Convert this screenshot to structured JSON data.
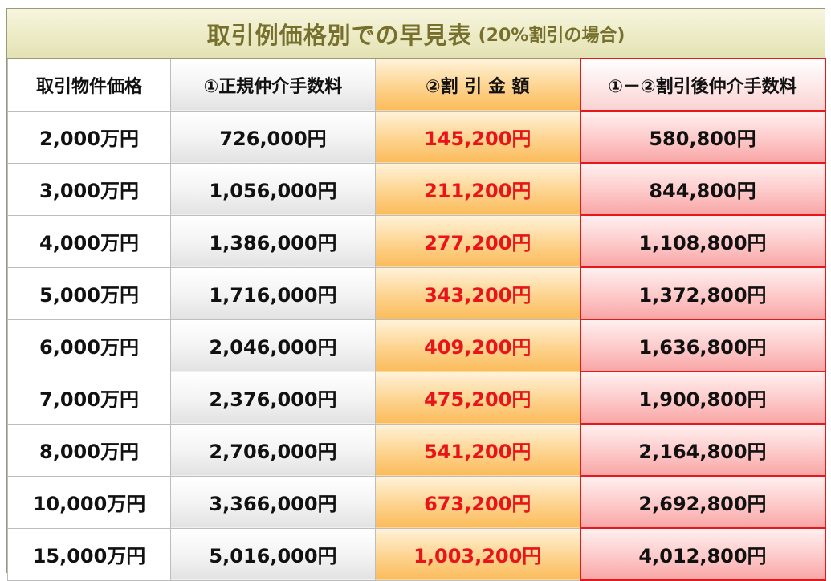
{
  "title": {
    "main": "取引例価格別での早見表",
    "sub": "(20%割引の場合)"
  },
  "headers": {
    "price": "取引物件価格",
    "fee": "①正規仲介手数料",
    "discount": "②割 引 金 額",
    "after": "①－②割引後仲介手数料"
  },
  "rows": [
    {
      "price": "2,000万円",
      "fee": "726,000円",
      "discount": "145,200円",
      "after": "580,800円"
    },
    {
      "price": "3,000万円",
      "fee": "1,056,000円",
      "discount": "211,200円",
      "after": "844,800円"
    },
    {
      "price": "4,000万円",
      "fee": "1,386,000円",
      "discount": "277,200円",
      "after": "1,108,800円"
    },
    {
      "price": "5,000万円",
      "fee": "1,716,000円",
      "discount": "343,200円",
      "after": "1,372,800円"
    },
    {
      "price": "6,000万円",
      "fee": "2,046,000円",
      "discount": "409,200円",
      "after": "1,636,800円"
    },
    {
      "price": "7,000万円",
      "fee": "2,376,000円",
      "discount": "475,200円",
      "after": "1,900,800円"
    },
    {
      "price": "8,000万円",
      "fee": "2,706,000円",
      "discount": "541,200円",
      "after": "2,164,800円"
    },
    {
      "price": "10,000万円",
      "fee": "3,366,000円",
      "discount": "673,200円",
      "after": "2,692,800円"
    },
    {
      "price": "15,000万円",
      "fee": "5,016,000円",
      "discount": "1,003,200円",
      "after": "4,012,800円"
    }
  ],
  "colors": {
    "title_text": "#77702c",
    "discount_text": "#e8141a",
    "highlight_border": "#e3191e"
  }
}
